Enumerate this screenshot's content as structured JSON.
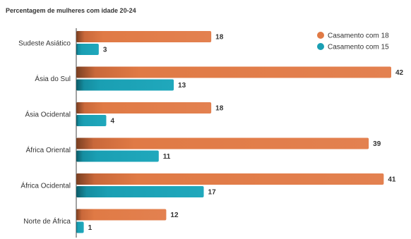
{
  "chart_data": {
    "type": "bar",
    "orientation": "horizontal",
    "title": "Percentagem de mulheres com idade 20-24",
    "categories": [
      "Sudeste Asiático",
      "Ásia do Sul",
      "Ásia Ocidental",
      "África Oriental",
      "África Ocidental",
      "Norte de África"
    ],
    "series": [
      {
        "name": "Casamento com 18",
        "color": "#e07a45",
        "values": [
          18,
          42,
          18,
          39,
          41,
          12
        ]
      },
      {
        "name": "Casamento com 15",
        "color": "#1a9fb3",
        "values": [
          3,
          13,
          4,
          11,
          17,
          1
        ]
      }
    ],
    "xlim": [
      0,
      42
    ],
    "legend_position": "top-right",
    "grid": false
  }
}
